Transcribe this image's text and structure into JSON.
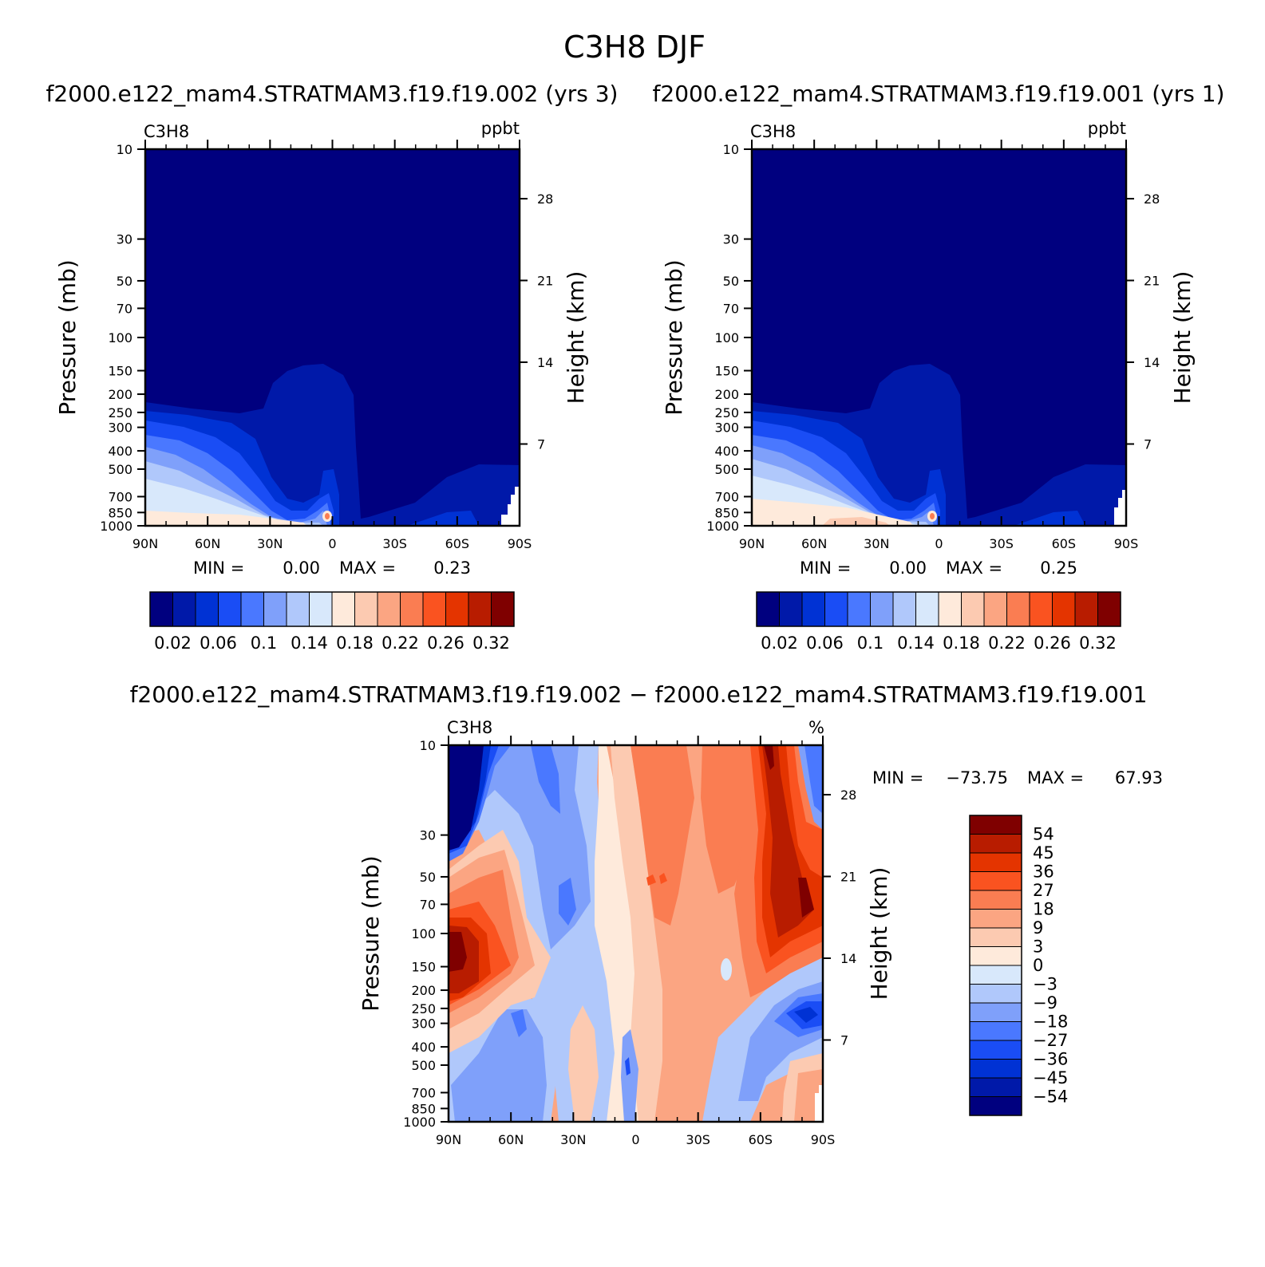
{
  "page": {
    "main_title": "C3H8 DJF"
  },
  "colors": {
    "ctrl_palette": [
      "#00007f",
      "#0019a9",
      "#0032d4",
      "#1a4df5",
      "#4a78ff",
      "#7fa0fa",
      "#b0c8fb",
      "#d8e8fb",
      "#feeadb",
      "#fccab1",
      "#fba582",
      "#fa7d52",
      "#fa5320",
      "#e43400",
      "#b81c00",
      "#7f0000"
    ],
    "diff_palette_bottom_to_top": [
      "#00007f",
      "#0019a9",
      "#0032d4",
      "#1a4df5",
      "#4a78ff",
      "#7fa0fa",
      "#b0c8fb",
      "#d8e8fb",
      "#feeadb",
      "#fccab1",
      "#fba582",
      "#fa7d52",
      "#fa5320",
      "#e43400",
      "#b81c00",
      "#7f0000"
    ]
  },
  "chart_data": [
    {
      "type": "heatmap",
      "title": "f2000.e122_mam4.STRATMAM3.f19.f19.002 (yrs 3)",
      "variable": "C3H8",
      "units": "ppbt",
      "xlabel": "",
      "ylabel": "Pressure (mb)",
      "ylabel_right": "Height (km)",
      "x_ticks": [
        "90N",
        "60N",
        "30N",
        "0",
        "30S",
        "60S",
        "90S"
      ],
      "y_ticks": [
        "10",
        "30",
        "50",
        "70",
        "100",
        "150",
        "200",
        "250",
        "300",
        "400",
        "500",
        "700",
        "850",
        "1000"
      ],
      "y_right_ticks": [
        "28",
        "21",
        "14",
        "7"
      ],
      "ylim": [
        1000,
        10
      ],
      "min_label": "MIN =",
      "min_value": "0.00",
      "max_label": "MAX =",
      "max_value": "0.23",
      "colorbar_labels": [
        "0.02",
        "0.06",
        "0.1",
        "0.14",
        "0.18",
        "0.22",
        "0.26",
        "0.32"
      ]
    },
    {
      "type": "heatmap",
      "title": "f2000.e122_mam4.STRATMAM3.f19.f19.001 (yrs 1)",
      "variable": "C3H8",
      "units": "ppbt",
      "xlabel": "",
      "ylabel": "Pressure (mb)",
      "ylabel_right": "Height (km)",
      "x_ticks": [
        "90N",
        "60N",
        "30N",
        "0",
        "30S",
        "60S",
        "90S"
      ],
      "y_ticks": [
        "10",
        "30",
        "50",
        "70",
        "100",
        "150",
        "200",
        "250",
        "300",
        "400",
        "500",
        "700",
        "850",
        "1000"
      ],
      "y_right_ticks": [
        "28",
        "21",
        "14",
        "7"
      ],
      "ylim": [
        1000,
        10
      ],
      "min_label": "MIN =",
      "min_value": "0.00",
      "max_label": "MAX =",
      "max_value": "0.25",
      "colorbar_labels": [
        "0.02",
        "0.06",
        "0.1",
        "0.14",
        "0.18",
        "0.22",
        "0.26",
        "0.32"
      ]
    },
    {
      "type": "heatmap",
      "title": "f2000.e122_mam4.STRATMAM3.f19.f19.002 − f2000.e122_mam4.STRATMAM3.f19.f19.001",
      "variable": "C3H8",
      "units": "%",
      "xlabel": "",
      "ylabel": "Pressure (mb)",
      "ylabel_right": "Height (km)",
      "x_ticks": [
        "90N",
        "60N",
        "30N",
        "0",
        "30S",
        "60S",
        "90S"
      ],
      "y_ticks": [
        "10",
        "30",
        "50",
        "70",
        "100",
        "150",
        "200",
        "250",
        "300",
        "400",
        "500",
        "700",
        "850",
        "1000"
      ],
      "y_right_ticks": [
        "28",
        "21",
        "14",
        "7"
      ],
      "ylim": [
        1000,
        10
      ],
      "min_label": "MIN =",
      "min_value": "−73.75",
      "max_label": "MAX =",
      "max_value": "67.93",
      "colorbar_labels": [
        "54",
        "45",
        "36",
        "27",
        "18",
        "9",
        "3",
        "0",
        "−3",
        "−9",
        "−18",
        "−27",
        "−36",
        "−45",
        "−54"
      ]
    }
  ]
}
